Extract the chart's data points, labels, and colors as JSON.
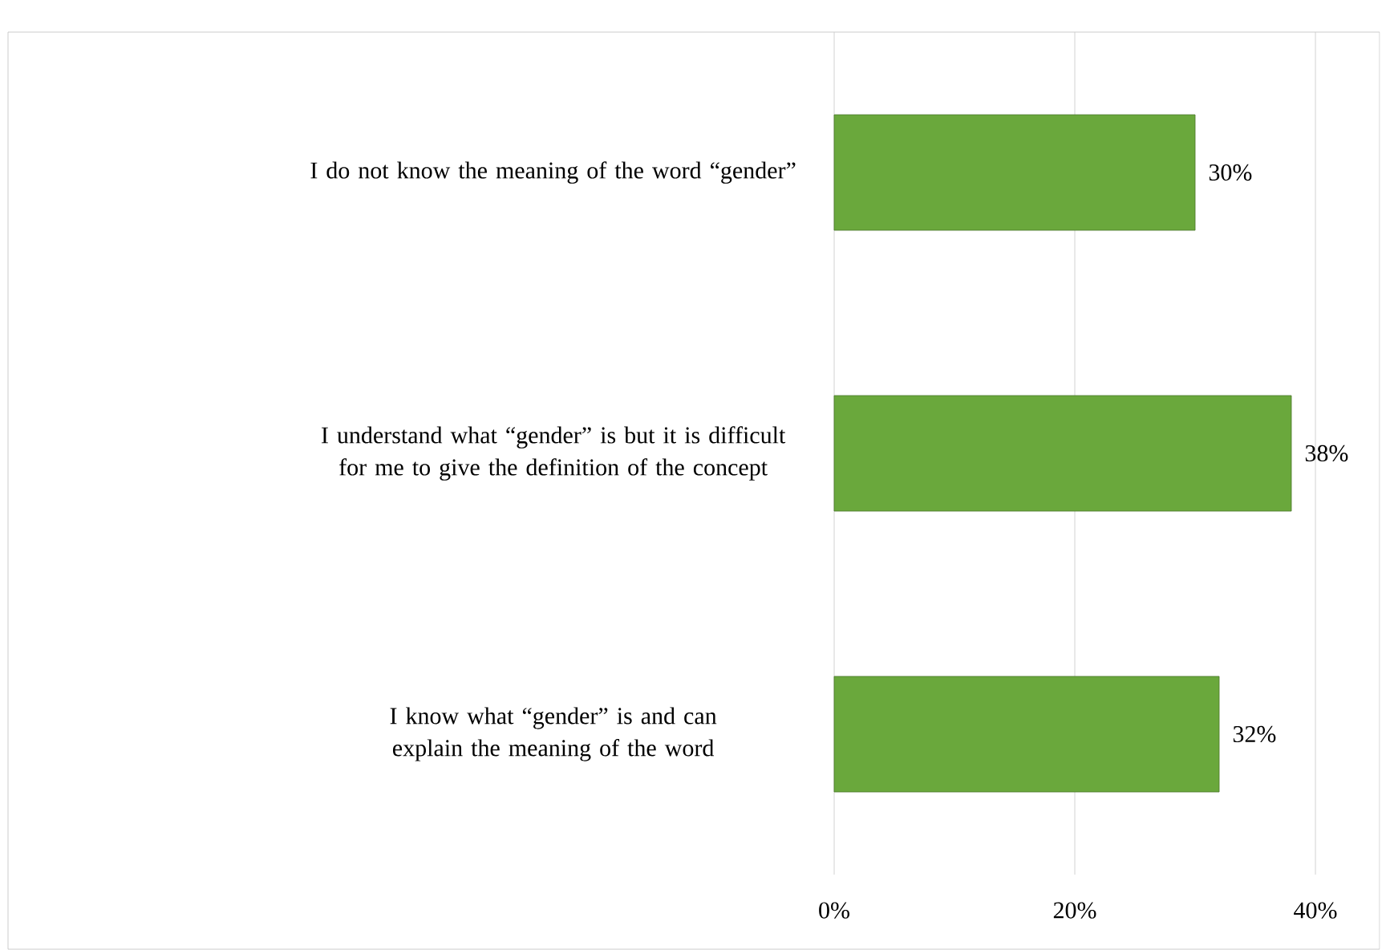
{
  "chart_data": {
    "type": "bar",
    "orientation": "horizontal",
    "categories": [
      "I do not know the meaning of the word “gender”",
      "I understand what “gender” is but it is difficult for me to give the definition of the concept",
      "I know what “gender” is and can explain the meaning of the word"
    ],
    "values": [
      30,
      38,
      32
    ],
    "value_labels": [
      "30%",
      "38%",
      "32%"
    ],
    "color": "#6aa83c",
    "xlim": [
      0,
      40
    ],
    "xticks": [
      {
        "value": 0,
        "label": "0%"
      },
      {
        "value": 20,
        "label": "20%"
      },
      {
        "value": 40,
        "label": "40%"
      }
    ],
    "grid": "x"
  }
}
